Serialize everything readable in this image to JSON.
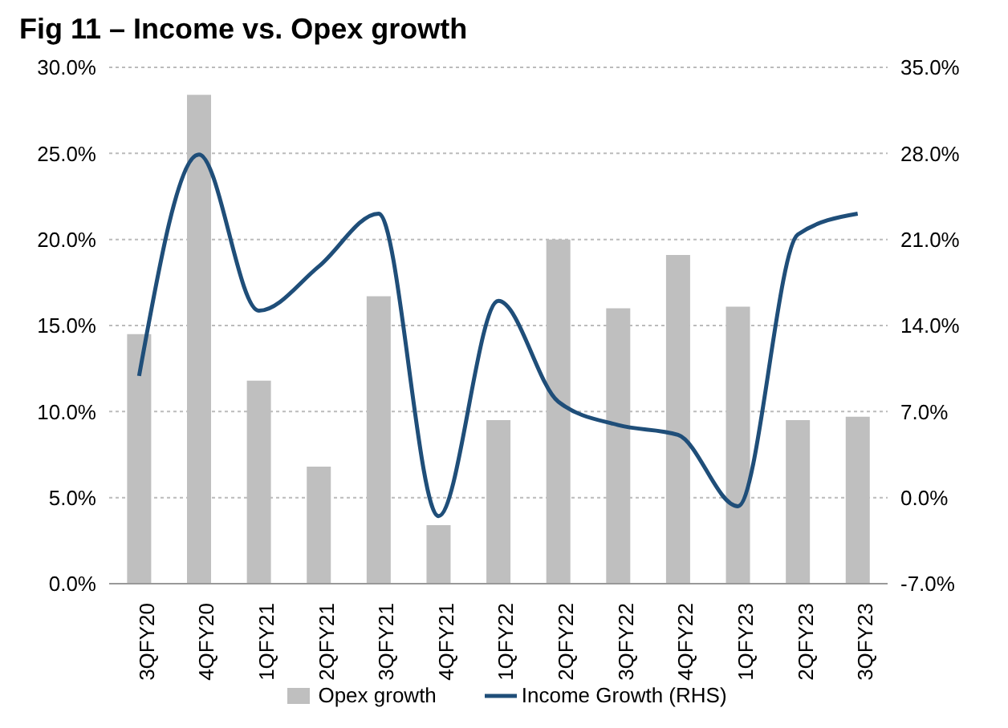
{
  "chart_data": {
    "type": "bar",
    "title": "Fig 11 – Income vs. Opex growth",
    "categories": [
      "3QFY20",
      "4QFY20",
      "1QFY21",
      "2QFY21",
      "3QFY21",
      "4QFY21",
      "1QFY22",
      "2QFY22",
      "3QFY22",
      "4QFY22",
      "1QFY23",
      "2QFY23",
      "3QFY23"
    ],
    "series": [
      {
        "name": "Opex growth",
        "color": "#bfbfbf",
        "values": [
          14.5,
          28.4,
          11.8,
          6.8,
          16.7,
          3.4,
          9.5,
          20.0,
          16.0,
          19.1,
          16.1,
          9.5,
          9.7
        ]
      },
      {
        "name": "Income Growth (RHS)",
        "type": "line",
        "axis": "y2",
        "color": "#1f4e79",
        "values": [
          9.9,
          27.9,
          15.2,
          18.8,
          23.1,
          -1.5,
          16.0,
          7.8,
          5.9,
          5.1,
          -0.7,
          21.4,
          23.1
        ]
      }
    ],
    "ylim": [
      0,
      30
    ],
    "yticks": [
      {
        "value": 0,
        "label": "0.0%"
      },
      {
        "value": 5,
        "label": "5.0%"
      },
      {
        "value": 10,
        "label": "10.0%"
      },
      {
        "value": 15,
        "label": "15.0%"
      },
      {
        "value": 20,
        "label": "20.0%"
      },
      {
        "value": 25,
        "label": "25.0%"
      },
      {
        "value": 30,
        "label": "30.0%"
      }
    ],
    "y2lim": [
      -7,
      35
    ],
    "y2ticks": [
      {
        "value": -7,
        "label": "-7.0%"
      },
      {
        "value": 0,
        "label": "0.0%"
      },
      {
        "value": 7,
        "label": "7.0%"
      },
      {
        "value": 14,
        "label": "14.0%"
      },
      {
        "value": 21,
        "label": "21.0%"
      },
      {
        "value": 28,
        "label": "28.0%"
      },
      {
        "value": 35,
        "label": "35.0%"
      }
    ],
    "grid": "y",
    "legend": "bottom",
    "marker": "none",
    "line_style": "solid"
  }
}
